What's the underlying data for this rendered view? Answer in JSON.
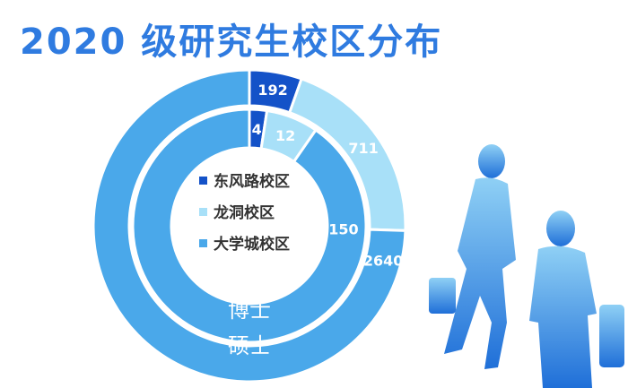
{
  "title": "2020 级研究生校区分布",
  "chart_data": {
    "type": "donut",
    "title": "2020 级研究生校区分布",
    "legend": {
      "placement": "center",
      "entries": [
        "东风路校区",
        "龙洞校区",
        "大学城校区"
      ]
    },
    "colors": [
      "#1452c8",
      "#a8e0f8",
      "#4aa8ea"
    ],
    "rings": [
      {
        "name": "博士",
        "position": "inner",
        "values": [
          4,
          12,
          150
        ]
      },
      {
        "name": "硕士",
        "position": "outer",
        "values": [
          192,
          711,
          2640
        ]
      }
    ]
  }
}
